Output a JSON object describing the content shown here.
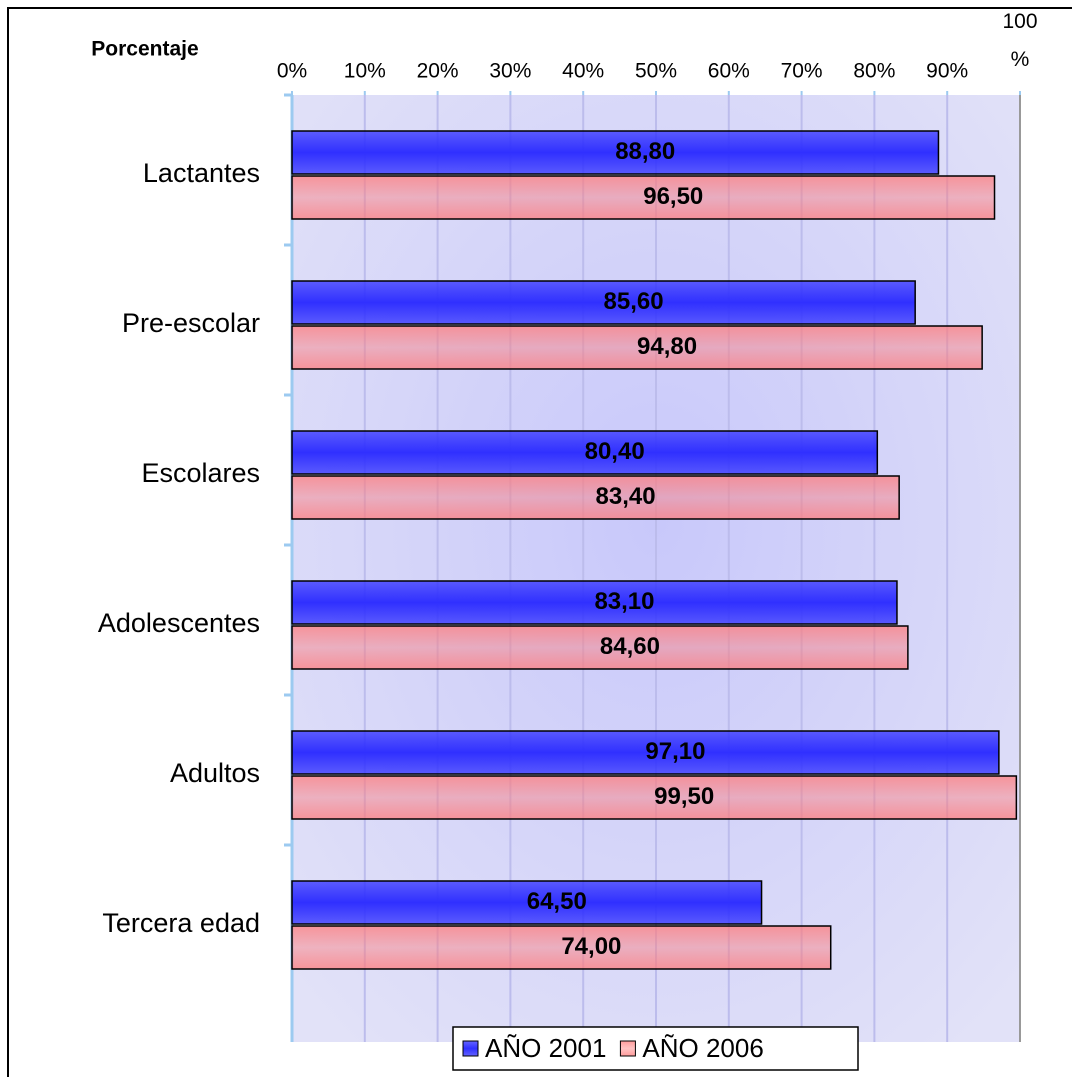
{
  "chart_data": {
    "type": "hbar",
    "x_label": "Porcentaje",
    "categories": [
      "Lactantes",
      "Pre-escolar",
      "Escolares",
      "Adolescentes",
      "Adultos",
      "Tercera edad"
    ],
    "series": [
      {
        "name": "AÑO 2001",
        "color": "#3030ff",
        "values": [
          88.8,
          85.6,
          80.4,
          83.1,
          97.1,
          64.5
        ],
        "value_labels": [
          "88,80",
          "85,60",
          "80,40",
          "83,10",
          "97,10",
          "64,50"
        ]
      },
      {
        "name": "AÑO 2006",
        "color": "#ff7b7b",
        "values": [
          96.5,
          94.8,
          83.4,
          84.6,
          99.5,
          74.0
        ],
        "value_labels": [
          "96,50",
          "94,80",
          "83,40",
          "84,60",
          "99,50",
          "74,00"
        ]
      }
    ],
    "xlim": [
      0,
      100
    ],
    "xticks": [
      {
        "value": 0,
        "label": "0%"
      },
      {
        "value": 10,
        "label": "10%"
      },
      {
        "value": 20,
        "label": "20%"
      },
      {
        "value": 30,
        "label": "30%"
      },
      {
        "value": 40,
        "label": "40%"
      },
      {
        "value": 50,
        "label": "50%"
      },
      {
        "value": 60,
        "label": "60%"
      },
      {
        "value": 70,
        "label": "70%"
      },
      {
        "value": 80,
        "label": "80%"
      },
      {
        "value": 90,
        "label": "90%"
      },
      {
        "value": 100,
        "label": "100 %"
      }
    ],
    "grid": true,
    "legend": "bottom"
  }
}
